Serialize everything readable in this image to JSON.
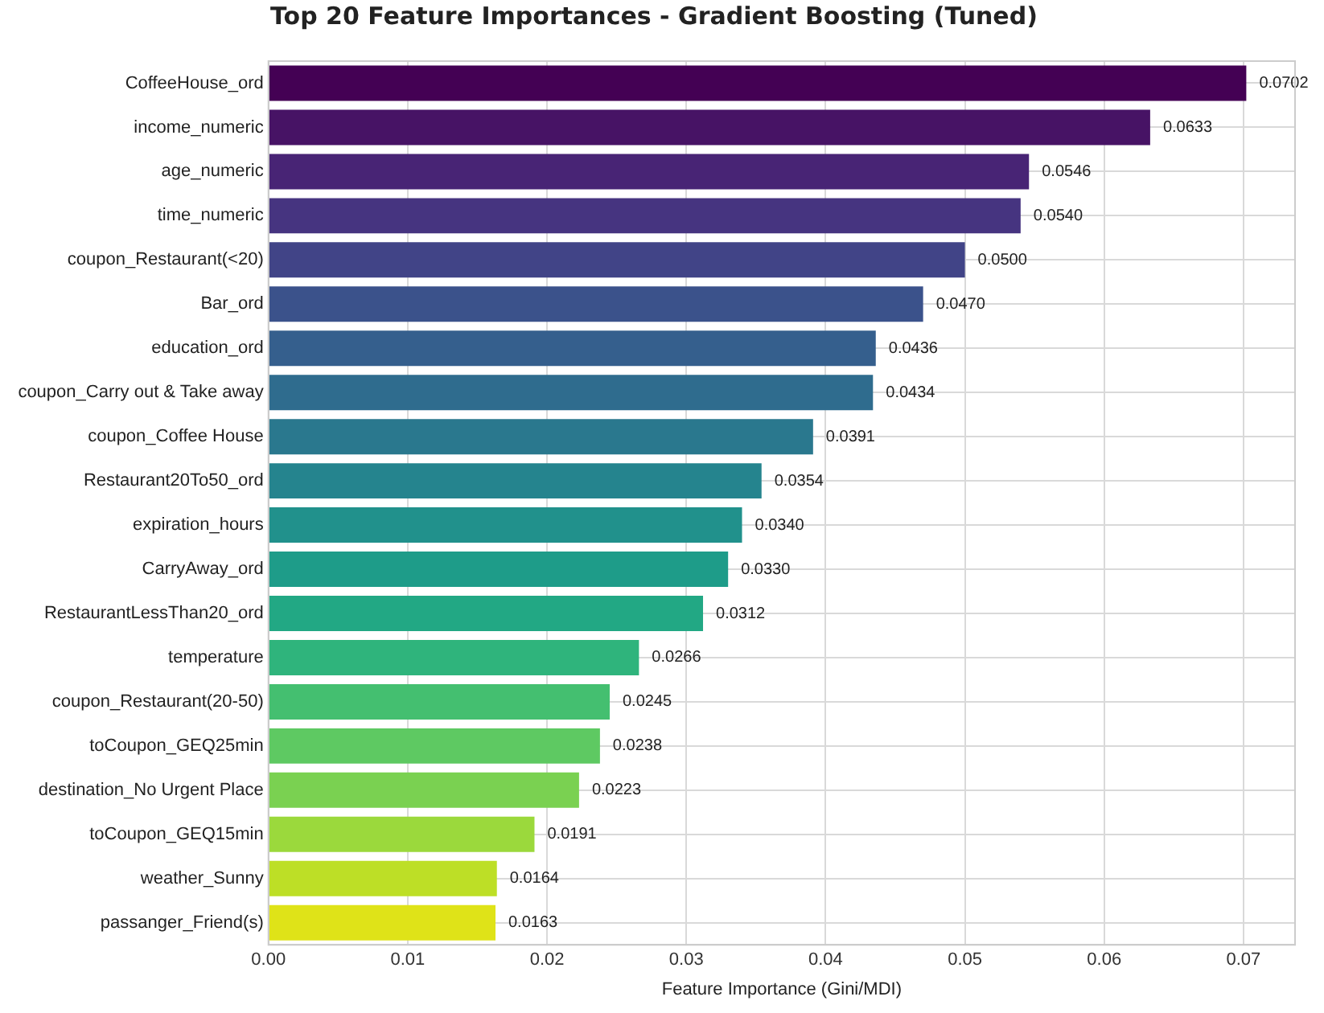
{
  "chart_data": {
    "type": "bar",
    "orientation": "horizontal",
    "title": "Top 20 Feature Importances - Gradient Boosting (Tuned)",
    "xlabel": "Feature Importance (Gini/MDI)",
    "categories": [
      "CoffeeHouse_ord",
      "income_numeric",
      "age_numeric",
      "time_numeric",
      "coupon_Restaurant(<20)",
      "Bar_ord",
      "education_ord",
      "coupon_Carry out & Take away",
      "coupon_Coffee House",
      "Restaurant20To50_ord",
      "expiration_hours",
      "CarryAway_ord",
      "RestaurantLessThan20_ord",
      "temperature",
      "coupon_Restaurant(20-50)",
      "toCoupon_GEQ25min",
      "destination_No Urgent Place",
      "toCoupon_GEQ15min",
      "weather_Sunny",
      "passanger_Friend(s)"
    ],
    "values": [
      0.0702,
      0.0633,
      0.0546,
      0.054,
      0.05,
      0.047,
      0.0436,
      0.0434,
      0.0391,
      0.0354,
      0.034,
      0.033,
      0.0312,
      0.0266,
      0.0245,
      0.0238,
      0.0223,
      0.0191,
      0.0164,
      0.0163
    ],
    "value_labels": [
      "0.0702",
      "0.0633",
      "0.0546",
      "0.0540",
      "0.0500",
      "0.0470",
      "0.0436",
      "0.0434",
      "0.0391",
      "0.0354",
      "0.0340",
      "0.0330",
      "0.0312",
      "0.0266",
      "0.0245",
      "0.0238",
      "0.0223",
      "0.0191",
      "0.0164",
      "0.0163"
    ],
    "colors": [
      "#440154",
      "#471365",
      "#482475",
      "#463480",
      "#414487",
      "#3b528b",
      "#355f8d",
      "#2f6c8e",
      "#2a788e",
      "#25848e",
      "#21918c",
      "#1e9c89",
      "#22a884",
      "#2fb47c",
      "#44bf70",
      "#5ec962",
      "#7ad151",
      "#9bd93c",
      "#bddf26",
      "#dfe318"
    ],
    "xlim": [
      0,
      0.0737
    ],
    "xticks": [
      {
        "value": 0,
        "label": "0.00"
      },
      {
        "value": 0.01,
        "label": "0.01"
      },
      {
        "value": 0.02,
        "label": "0.02"
      },
      {
        "value": 0.03,
        "label": "0.03"
      },
      {
        "value": 0.04,
        "label": "0.04"
      },
      {
        "value": 0.05,
        "label": "0.05"
      },
      {
        "value": 0.06,
        "label": "0.06"
      },
      {
        "value": 0.07,
        "label": "0.07"
      }
    ],
    "grid": true,
    "legend": false
  }
}
